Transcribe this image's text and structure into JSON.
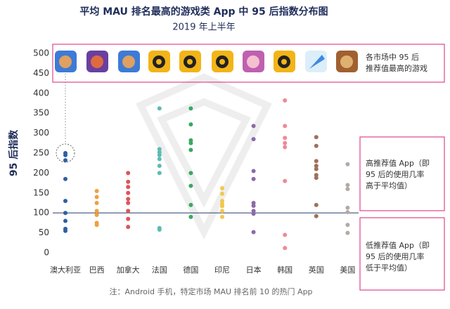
{
  "chart_data": {
    "type": "strip",
    "title": "平均 MAU 排名最高的游戏类 App 中 95 后指数分布图",
    "subtitle": "2019 年上半年",
    "y_label": "95 后指数",
    "note": "注：Android 手机，特定市场 MAU 排名前 10 的热门 App",
    "categories": [
      "澳大利亚",
      "巴西",
      "加拿大",
      "法国",
      "德国",
      "印尼",
      "日本",
      "韩国",
      "英国",
      "美国"
    ],
    "colors": [
      "#2e5fa3",
      "#f0a040",
      "#e0525a",
      "#5bbcb0",
      "#3aa860",
      "#f2c84b",
      "#8a6aa8",
      "#f08898",
      "#a0705a",
      "#b3aba3"
    ],
    "values": [
      [
        250,
        245,
        232,
        185,
        130,
        100,
        80,
        60,
        55
      ],
      [
        155,
        140,
        125,
        105,
        95,
        75,
        70
      ],
      [
        200,
        178,
        165,
        150,
        135,
        125,
        105,
        85,
        65
      ],
      [
        362,
        260,
        252,
        245,
        235,
        218,
        200,
        62,
        58
      ],
      [
        362,
        322,
        282,
        275,
        258,
        200,
        168,
        120,
        90
      ],
      [
        162,
        148,
        130,
        123,
        117,
        105,
        90
      ],
      [
        318,
        285,
        205,
        185,
        125,
        118,
        105,
        98,
        52
      ],
      [
        382,
        318,
        288,
        275,
        265,
        180,
        45,
        12
      ],
      [
        290,
        268,
        230,
        218,
        210,
        195,
        188,
        120,
        92
      ],
      [
        222,
        170,
        160,
        113,
        102,
        70,
        50
      ]
    ],
    "reference_line": 100,
    "reference_color": "#3d4f7a",
    "ylim": [
      0,
      500
    ],
    "yticks": [
      0,
      50,
      100,
      150,
      200,
      250,
      300,
      350,
      400,
      450,
      500
    ],
    "annotations": [
      [
        "各市场中 95 后",
        "推荐值最高的游戏"
      ],
      [
        "高推荐值 App（即",
        "95 后的使用几率",
        "高于平均值）"
      ],
      [
        "低推荐值 App（即",
        "95 后的使用几率",
        "低于平均值）"
      ]
    ]
  }
}
